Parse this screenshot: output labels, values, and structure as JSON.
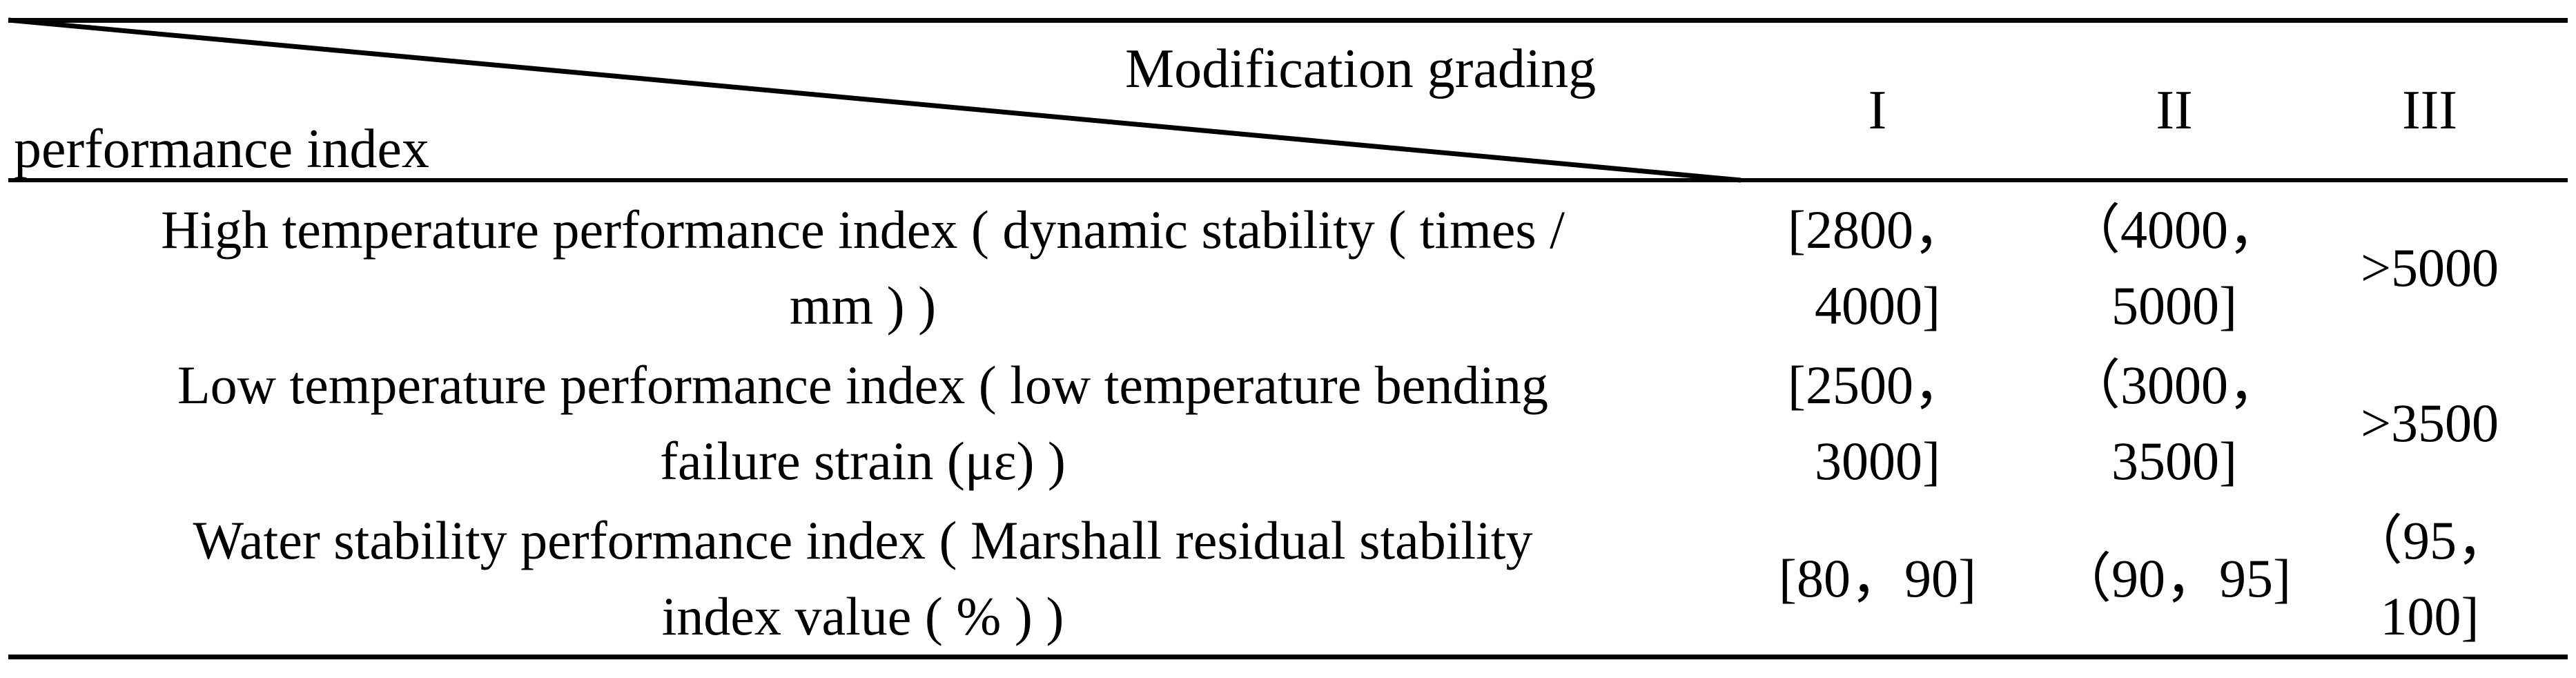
{
  "header": {
    "modification_grading": "Modification grading",
    "performance_index": "performance index",
    "grades": [
      "I",
      "II",
      "III"
    ]
  },
  "rows": [
    {
      "label": "High temperature performance index ( dynamic stability ( times /\nmm ) )",
      "g1": "[2800，\n4000]",
      "g2": "（4000，\n5000]",
      "g3": ">5000"
    },
    {
      "label": "Low temperature performance index ( low temperature bending\nfailure strain (με) )",
      "g1": "[2500，\n3000]",
      "g2": "（3000，\n3500]",
      "g3": ">3500"
    },
    {
      "label": "Water stability performance index ( Marshall residual stability\nindex value ( % ) )",
      "g1": "[80，90]",
      "g2": "（90，95]",
      "g3": "（95，\n100]"
    }
  ]
}
